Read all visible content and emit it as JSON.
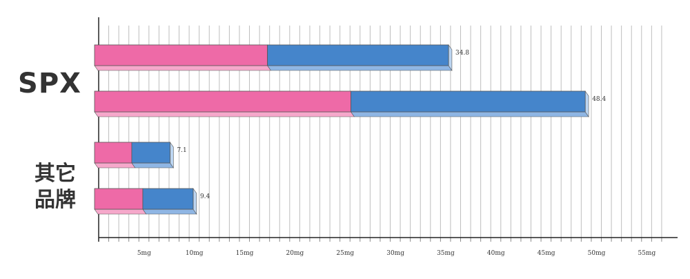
{
  "chart_data": {
    "type": "bar",
    "orientation": "horizontal",
    "stacked": true,
    "x_unit": "mg",
    "xlim": [
      0,
      56
    ],
    "grid": true,
    "x_ticks": [
      {
        "value": 5,
        "label": "5mg"
      },
      {
        "value": 10,
        "label": "10mg"
      },
      {
        "value": 15,
        "label": "15mg"
      },
      {
        "value": 20,
        "label": "20mg"
      },
      {
        "value": 25,
        "label": "25mg"
      },
      {
        "value": 30,
        "label": "30mg"
      },
      {
        "value": 35,
        "label": "35mg"
      },
      {
        "value": 40,
        "label": "40mg"
      },
      {
        "value": 45,
        "label": "45mg"
      },
      {
        "value": 50,
        "label": "50mg"
      },
      {
        "value": 55,
        "label": "55mg"
      }
    ],
    "groups": [
      {
        "label": "SPX",
        "label_lines": [
          "SPX"
        ]
      },
      {
        "label": "其它品牌",
        "label_lines": [
          "其它",
          "品牌"
        ]
      }
    ],
    "bars": [
      {
        "group": 0,
        "segments": [
          17.2,
          17.6
        ],
        "total": 34.8,
        "total_label": "34.8"
      },
      {
        "group": 0,
        "segments": [
          25.5,
          22.9
        ],
        "total": 48.4,
        "total_label": "48.4"
      },
      {
        "group": 1,
        "segments": [
          3.7,
          3.4
        ],
        "total": 7.1,
        "total_label": "7.1"
      },
      {
        "group": 1,
        "segments": [
          4.8,
          4.6
        ],
        "total": 9.4,
        "total_label": "9.4"
      }
    ],
    "colors": {
      "segment_1": "#ee6aa7",
      "segment_1_bottom": "#f6a8cb",
      "segment_2": "#4585cb",
      "segment_2_bottom": "#8fb6e4",
      "segment_2_side": "#bcd5f1",
      "grid": "#bdbdbd",
      "axis": "#222222",
      "text": "#333333"
    }
  }
}
